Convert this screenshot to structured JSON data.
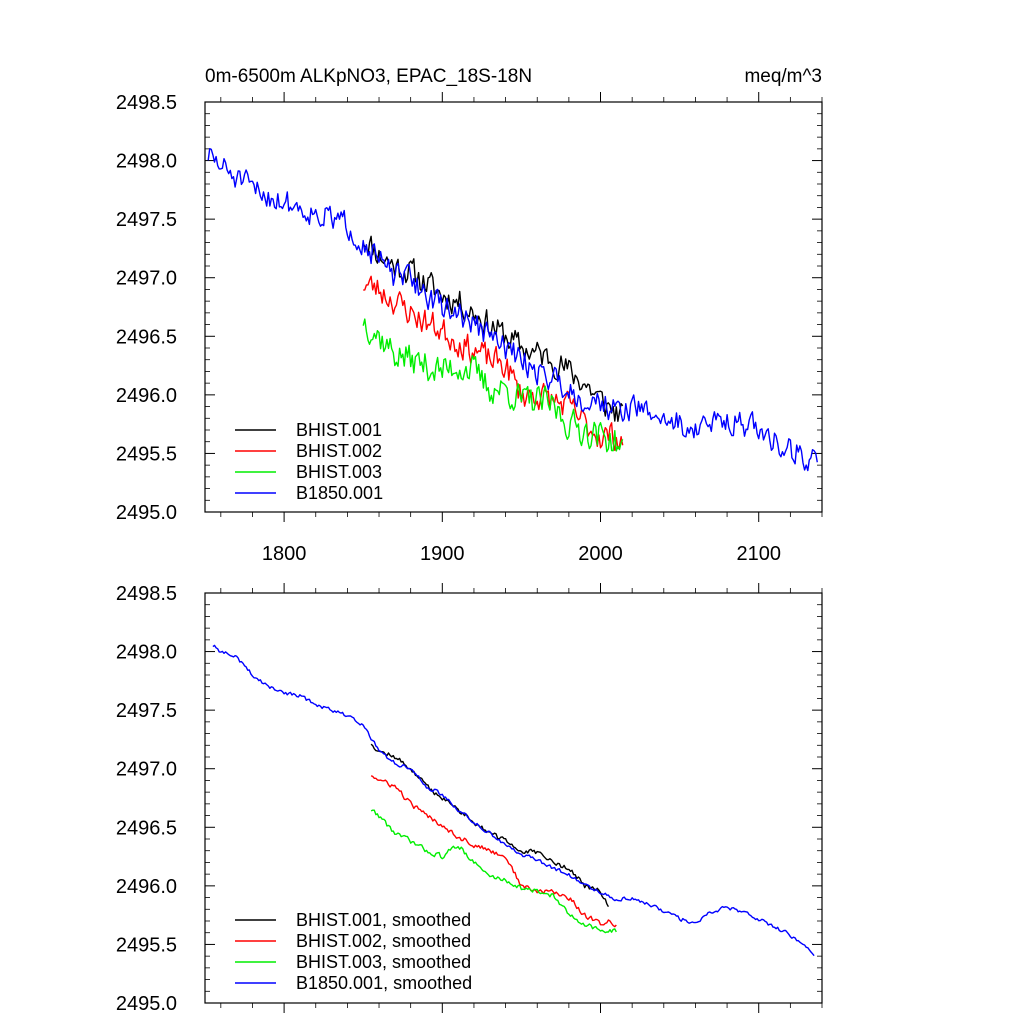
{
  "chart_data": [
    {
      "type": "line",
      "title": "0m-6500m ALKpNO3, EPAC_18S-18N",
      "units": "meq/m^3",
      "xlabel": "",
      "ylabel": "",
      "xlim": [
        1750,
        2140
      ],
      "ylim": [
        2495.0,
        2498.5
      ],
      "grid": false,
      "legend_position": "lower-left",
      "x_ticks": [
        1800,
        1900,
        2000,
        2100
      ],
      "x_tick_labels": [
        "1800",
        "1900",
        "2000",
        "2100"
      ],
      "y_ticks": [
        2495.0,
        2495.5,
        2496.0,
        2496.5,
        2497.0,
        2497.5,
        2498.0,
        2498.5
      ],
      "y_tick_labels": [
        "2495.0",
        "2495.5",
        "2496.0",
        "2496.5",
        "2497.0",
        "2497.5",
        "2498.0",
        "2498.5"
      ],
      "series": [
        {
          "name": "BHIST.001",
          "color": "#000000",
          "noise": 0.11,
          "seed": 11,
          "x": [
            1850,
            1860,
            1870,
            1880,
            1890,
            1900,
            1910,
            1920,
            1930,
            1940,
            1950,
            1960,
            1970,
            1980,
            1990,
            2000,
            2010,
            2014
          ],
          "y": [
            2497.35,
            2497.2,
            2497.1,
            2497.05,
            2496.95,
            2496.85,
            2496.8,
            2496.7,
            2496.6,
            2496.5,
            2496.4,
            2496.35,
            2496.3,
            2496.2,
            2496.1,
            2495.95,
            2495.85,
            2495.8
          ]
        },
        {
          "name": "BHIST.002",
          "color": "#ff0000",
          "noise": 0.11,
          "seed": 23,
          "x": [
            1850,
            1860,
            1870,
            1880,
            1890,
            1900,
            1910,
            1920,
            1930,
            1940,
            1950,
            1960,
            1970,
            1980,
            1990,
            2000,
            2010,
            2014
          ],
          "y": [
            2496.95,
            2496.9,
            2496.8,
            2496.7,
            2496.62,
            2496.55,
            2496.45,
            2496.38,
            2496.3,
            2496.25,
            2496.0,
            2496.0,
            2495.95,
            2495.9,
            2495.75,
            2495.65,
            2495.65,
            2495.6
          ]
        },
        {
          "name": "BHIST.003",
          "color": "#00ee00",
          "noise": 0.12,
          "seed": 37,
          "x": [
            1850,
            1860,
            1870,
            1880,
            1890,
            1900,
            1910,
            1920,
            1930,
            1940,
            1950,
            1960,
            1970,
            1980,
            1990,
            2000,
            2010,
            2014
          ],
          "y": [
            2496.65,
            2496.5,
            2496.35,
            2496.3,
            2496.25,
            2496.2,
            2496.25,
            2496.2,
            2496.05,
            2496.05,
            2495.95,
            2495.95,
            2495.9,
            2495.75,
            2495.7,
            2495.65,
            2495.6,
            2495.5
          ]
        },
        {
          "name": "B1850.001",
          "color": "#0000ff",
          "noise": 0.1,
          "seed": 51,
          "x": [
            1752,
            1760,
            1770,
            1780,
            1790,
            1800,
            1810,
            1820,
            1830,
            1840,
            1850,
            1860,
            1870,
            1880,
            1890,
            1900,
            1910,
            1920,
            1930,
            1940,
            1950,
            1960,
            1970,
            1980,
            1990,
            2000,
            2010,
            2020,
            2030,
            2040,
            2050,
            2060,
            2070,
            2080,
            2090,
            2100,
            2110,
            2120,
            2130,
            2137
          ],
          "y": [
            2498.05,
            2497.95,
            2497.85,
            2497.75,
            2497.7,
            2497.65,
            2497.6,
            2497.55,
            2497.5,
            2497.45,
            2497.3,
            2497.15,
            2497.0,
            2497.0,
            2496.85,
            2496.75,
            2496.7,
            2496.6,
            2496.5,
            2496.4,
            2496.3,
            2496.2,
            2496.15,
            2496.05,
            2495.95,
            2495.95,
            2495.85,
            2495.9,
            2495.85,
            2495.8,
            2495.75,
            2495.7,
            2495.75,
            2495.8,
            2495.75,
            2495.7,
            2495.6,
            2495.55,
            2495.45,
            2495.4
          ]
        }
      ]
    },
    {
      "type": "line",
      "title": "",
      "xlabel": "",
      "ylabel": "",
      "xlim": [
        1750,
        2140
      ],
      "ylim": [
        2495.0,
        2498.5
      ],
      "grid": false,
      "legend_position": "lower-left",
      "x_ticks": [
        1800,
        1900,
        2000,
        2100
      ],
      "x_tick_labels": [],
      "y_ticks": [
        2495.0,
        2495.5,
        2496.0,
        2496.5,
        2497.0,
        2497.5,
        2498.0,
        2498.5
      ],
      "y_tick_labels": [
        "2495.0",
        "2495.5",
        "2496.0",
        "2496.5",
        "2497.0",
        "2497.5",
        "2498.0",
        "2498.5"
      ],
      "series": [
        {
          "name": "BHIST.001, smoothed",
          "color": "#000000",
          "noise": 0.02,
          "seed": 12,
          "x": [
            1855,
            1860,
            1870,
            1880,
            1890,
            1900,
            1910,
            1920,
            1930,
            1940,
            1950,
            1960,
            1970,
            1980,
            1990,
            2000,
            2005
          ],
          "y": [
            2497.22,
            2497.15,
            2497.1,
            2497.0,
            2496.85,
            2496.75,
            2496.65,
            2496.55,
            2496.45,
            2496.38,
            2496.3,
            2496.28,
            2496.2,
            2496.15,
            2496.0,
            2495.95,
            2495.82
          ]
        },
        {
          "name": "BHIST.002, smoothed",
          "color": "#ff0000",
          "noise": 0.02,
          "seed": 24,
          "x": [
            1855,
            1860,
            1870,
            1880,
            1890,
            1900,
            1910,
            1920,
            1930,
            1940,
            1950,
            1960,
            1970,
            1980,
            1990,
            2000,
            2005,
            2010
          ],
          "y": [
            2496.95,
            2496.9,
            2496.85,
            2496.7,
            2496.6,
            2496.52,
            2496.42,
            2496.35,
            2496.3,
            2496.25,
            2496.0,
            2495.95,
            2495.95,
            2495.9,
            2495.75,
            2495.68,
            2495.7,
            2495.65
          ]
        },
        {
          "name": "BHIST.003, smoothed",
          "color": "#00ee00",
          "noise": 0.02,
          "seed": 38,
          "x": [
            1855,
            1860,
            1870,
            1880,
            1890,
            1900,
            1910,
            1920,
            1930,
            1940,
            1950,
            1960,
            1970,
            1980,
            1990,
            2000,
            2005,
            2010
          ],
          "y": [
            2496.65,
            2496.6,
            2496.45,
            2496.38,
            2496.3,
            2496.25,
            2496.35,
            2496.2,
            2496.08,
            2496.05,
            2495.98,
            2495.95,
            2495.92,
            2495.75,
            2495.68,
            2495.62,
            2495.6,
            2495.62
          ]
        },
        {
          "name": "B1850.001, smoothed",
          "color": "#0000ff",
          "noise": 0.015,
          "seed": 52,
          "x": [
            1755,
            1760,
            1770,
            1780,
            1790,
            1800,
            1810,
            1820,
            1830,
            1840,
            1850,
            1860,
            1870,
            1880,
            1890,
            1900,
            1910,
            1920,
            1930,
            1940,
            1950,
            1960,
            1970,
            1980,
            1990,
            2000,
            2010,
            2020,
            2030,
            2040,
            2050,
            2060,
            2070,
            2080,
            2090,
            2100,
            2110,
            2120,
            2130,
            2135
          ],
          "y": [
            2498.05,
            2498.0,
            2497.95,
            2497.8,
            2497.7,
            2497.65,
            2497.62,
            2497.55,
            2497.5,
            2497.45,
            2497.38,
            2497.15,
            2497.05,
            2497.0,
            2496.85,
            2496.78,
            2496.65,
            2496.55,
            2496.45,
            2496.35,
            2496.27,
            2496.22,
            2496.15,
            2496.1,
            2496.0,
            2495.95,
            2495.88,
            2495.9,
            2495.85,
            2495.78,
            2495.72,
            2495.68,
            2495.78,
            2495.82,
            2495.78,
            2495.72,
            2495.65,
            2495.58,
            2495.48,
            2495.42
          ]
        }
      ]
    }
  ]
}
